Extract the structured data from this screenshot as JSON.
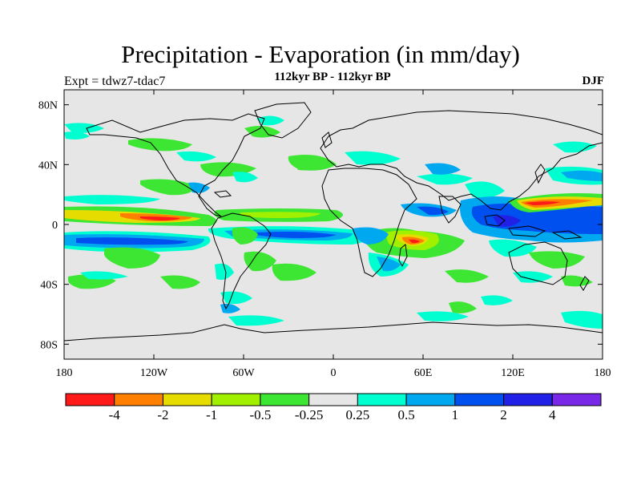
{
  "map": {
    "title": "Precipitation - Evaporation (in mm/day)",
    "subtitle": "112kyr BP - 112kyr BP",
    "experiment": "Expt = tdwz7-tdac7",
    "season": "DJF",
    "projection": "cylindrical equidistant",
    "lon_range": [
      -180,
      180
    ],
    "lat_range": [
      -90,
      90
    ],
    "lat_ticks": [
      {
        "lat": 80,
        "label": "80N"
      },
      {
        "lat": 40,
        "label": "40N"
      },
      {
        "lat": 0,
        "label": "0"
      },
      {
        "lat": -40,
        "label": "40S"
      },
      {
        "lat": -80,
        "label": "80S"
      }
    ],
    "lon_ticks": [
      {
        "lon": -180,
        "label": "180"
      },
      {
        "lon": -120,
        "label": "120W"
      },
      {
        "lon": -60,
        "label": "60W"
      },
      {
        "lon": 0,
        "label": "0"
      },
      {
        "lon": 60,
        "label": "60E"
      },
      {
        "lon": 120,
        "label": "120E"
      },
      {
        "lon": 180,
        "label": "180"
      }
    ]
  },
  "colorbar": {
    "colors": [
      "#ff1a1a",
      "#ff8000",
      "#e6dc00",
      "#a0f000",
      "#3ce632",
      "#e6e6e6",
      "#00ffd0",
      "#00a8f0",
      "#0050f0",
      "#2020e6",
      "#7828e6"
    ],
    "labels": [
      "-4",
      "-2",
      "-1",
      "-0.5",
      "-0.25",
      "0.25",
      "0.5",
      "1",
      "2",
      "4"
    ]
  }
}
